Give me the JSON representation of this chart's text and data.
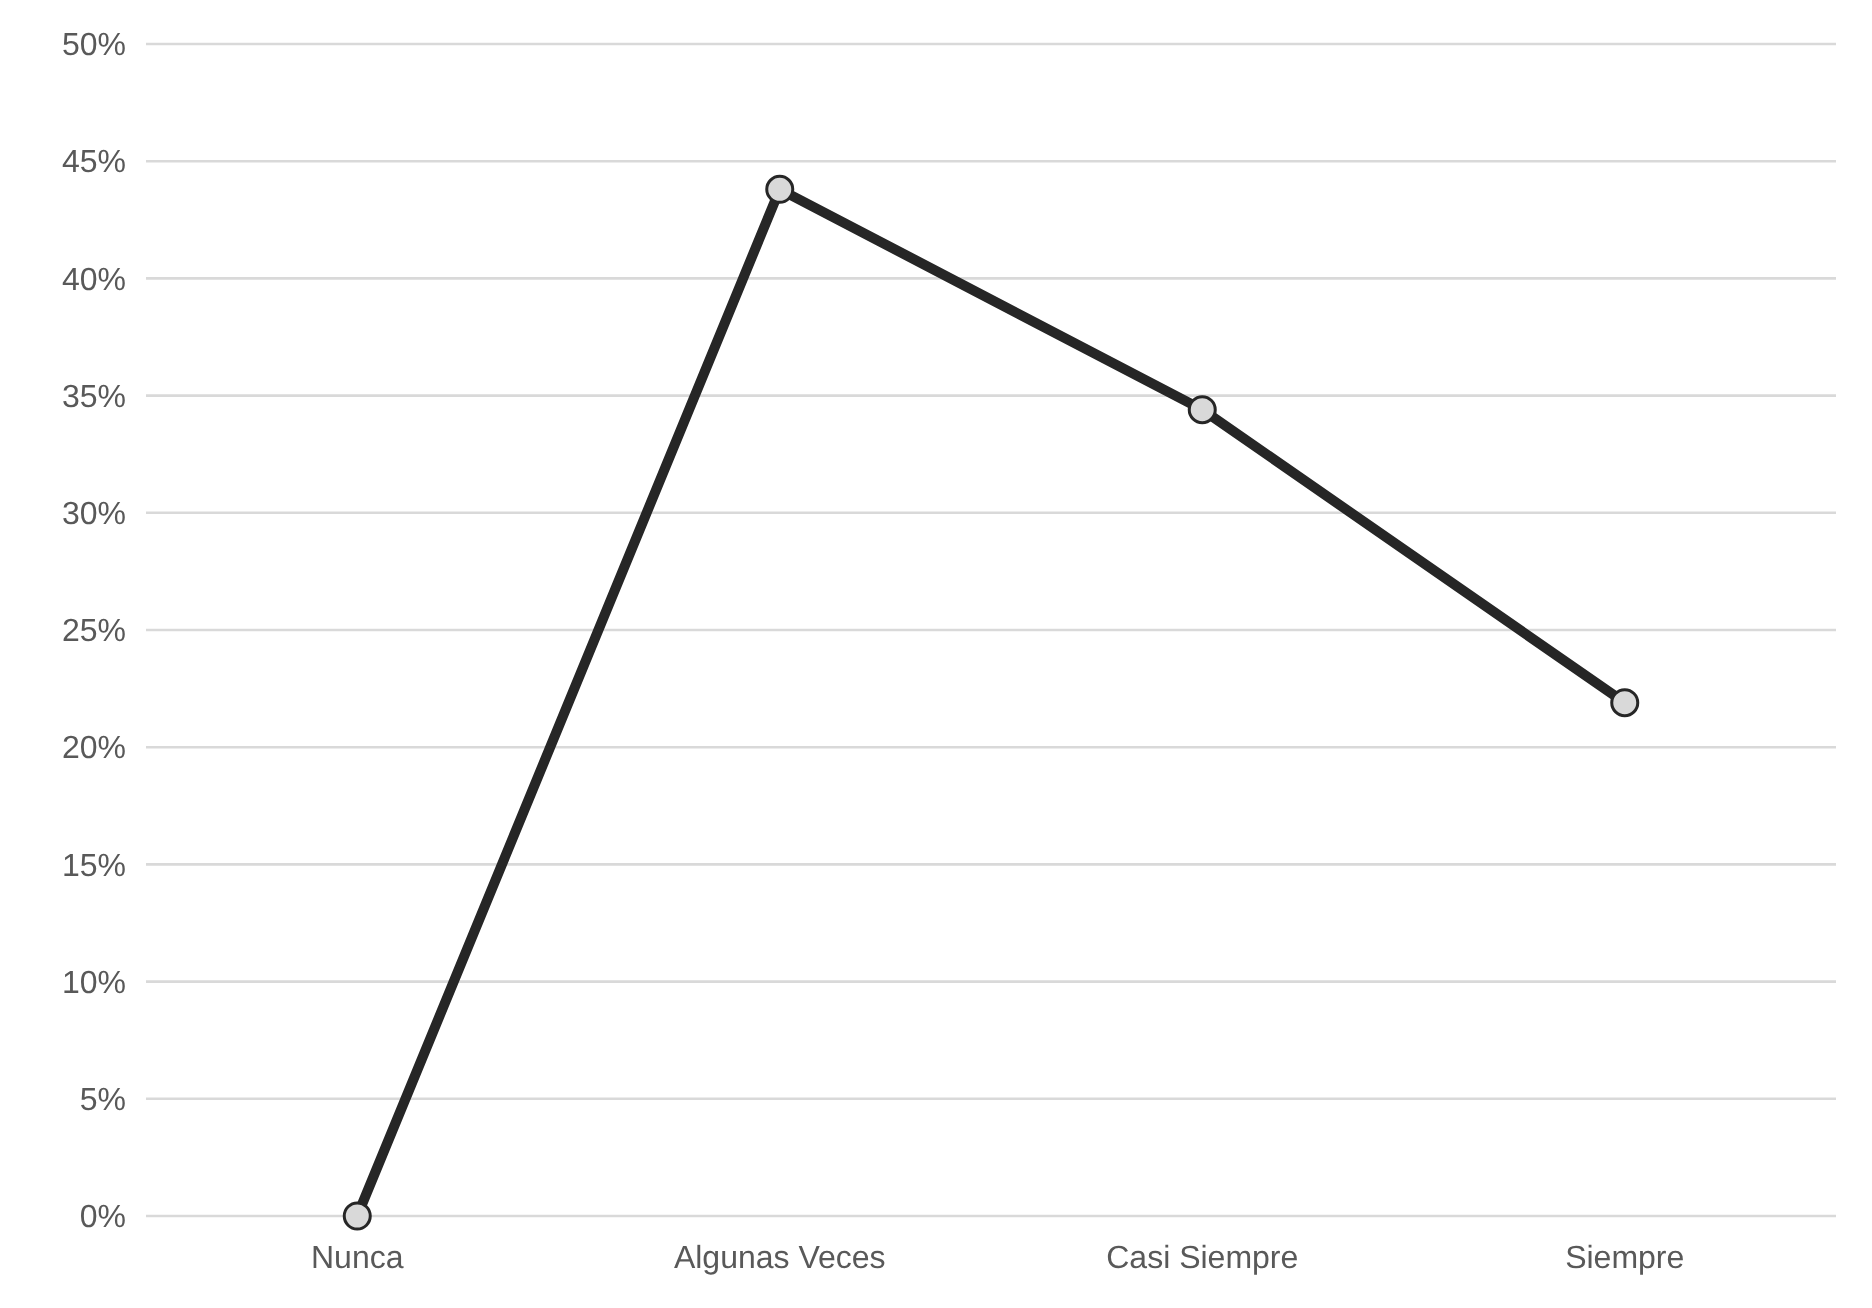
{
  "chart_data": {
    "type": "line",
    "categories": [
      "Nunca",
      "Algunas Veces",
      "Casi Siempre",
      "Siempre"
    ],
    "series": [
      {
        "color": "#262626",
        "values": [
          0,
          43.8,
          34.4,
          21.9
        ]
      }
    ],
    "ylim": [
      0,
      50
    ],
    "yticks": [
      {
        "value": 0,
        "label": "0%"
      },
      {
        "value": 5,
        "label": "5%"
      },
      {
        "value": 10,
        "label": "10%"
      },
      {
        "value": 15,
        "label": "15%"
      },
      {
        "value": 20,
        "label": "20%"
      },
      {
        "value": 25,
        "label": "25%"
      },
      {
        "value": 30,
        "label": "30%"
      },
      {
        "value": 35,
        "label": "35%"
      },
      {
        "value": 40,
        "label": "40%"
      },
      {
        "value": 45,
        "label": "45%"
      },
      {
        "value": 50,
        "label": "50%"
      }
    ],
    "grid": "y",
    "marker": "circle",
    "line_style": "solid"
  }
}
